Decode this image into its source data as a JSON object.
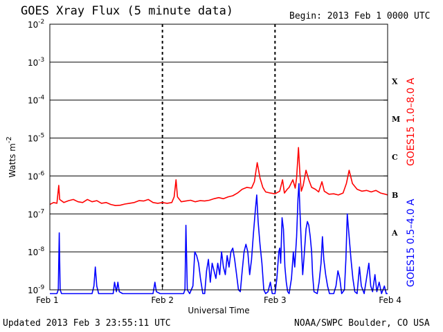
{
  "header": {
    "title": "GOES Xray Flux (5 minute data)",
    "begin": "Begin:  2013 Feb 1 0000 UTC"
  },
  "footer": {
    "updated": "Updated 2013 Feb  3 23:55:11 UTC",
    "credit": "NOAA/SWPC Boulder, CO USA"
  },
  "chart_data": {
    "type": "line",
    "title": "GOES Xray Flux (5 minute data)",
    "xlabel": "Universal Time",
    "ylabel": "Watts m",
    "ylabel_sup": "-2",
    "yscale": "log",
    "ylim": [
      1e-09,
      0.01
    ],
    "xlim": [
      0,
      72
    ],
    "x_unit": "hours since 2013 Feb 1 0000 UTC",
    "x_ticks": [
      {
        "x": 0,
        "label": "Feb 1"
      },
      {
        "x": 24,
        "label": "Feb 2"
      },
      {
        "x": 48,
        "label": "Feb 3"
      },
      {
        "x": 72,
        "label": "Feb 4"
      }
    ],
    "y_ticks": [
      {
        "exp": -2,
        "base": "10",
        "sup": "-2"
      },
      {
        "exp": -3,
        "base": "10",
        "sup": "-3"
      },
      {
        "exp": -4,
        "base": "10",
        "sup": "-4"
      },
      {
        "exp": -5,
        "base": "10",
        "sup": "-5"
      },
      {
        "exp": -6,
        "base": "10",
        "sup": "-6"
      },
      {
        "exp": -7,
        "base": "10",
        "sup": "-7"
      },
      {
        "exp": -8,
        "base": "10",
        "sup": "-8"
      },
      {
        "exp": -9,
        "base": "10",
        "sup": "-9"
      }
    ],
    "flare_classes": [
      {
        "label": "X",
        "exp": -3.5
      },
      {
        "label": "M",
        "exp": -4.5
      },
      {
        "label": "C",
        "exp": -5.5
      },
      {
        "label": "B",
        "exp": -6.5
      },
      {
        "label": "A",
        "exp": -7.5
      }
    ],
    "grid": true,
    "series": [
      {
        "name": "GOES15 1.0–8.0 A",
        "color": "#ff0000",
        "points": [
          [
            0,
            -6.75
          ],
          [
            0.8,
            -6.7
          ],
          [
            1.5,
            -6.72
          ],
          [
            1.9,
            -6.25
          ],
          [
            2.1,
            -6.62
          ],
          [
            3,
            -6.7
          ],
          [
            4,
            -6.65
          ],
          [
            5,
            -6.62
          ],
          [
            6,
            -6.68
          ],
          [
            7,
            -6.7
          ],
          [
            8,
            -6.62
          ],
          [
            9,
            -6.68
          ],
          [
            10,
            -6.65
          ],
          [
            11,
            -6.72
          ],
          [
            12,
            -6.7
          ],
          [
            13,
            -6.75
          ],
          [
            14,
            -6.78
          ],
          [
            15,
            -6.77
          ],
          [
            16,
            -6.74
          ],
          [
            17,
            -6.72
          ],
          [
            18,
            -6.7
          ],
          [
            19,
            -6.65
          ],
          [
            20,
            -6.66
          ],
          [
            21,
            -6.62
          ],
          [
            22,
            -6.7
          ],
          [
            23,
            -6.72
          ],
          [
            24,
            -6.7
          ],
          [
            25,
            -6.72
          ],
          [
            26,
            -6.7
          ],
          [
            26.5,
            -6.55
          ],
          [
            26.9,
            -6.1
          ],
          [
            27.2,
            -6.55
          ],
          [
            28,
            -6.68
          ],
          [
            29,
            -6.66
          ],
          [
            30,
            -6.64
          ],
          [
            31,
            -6.68
          ],
          [
            32,
            -6.65
          ],
          [
            33,
            -6.66
          ],
          [
            34,
            -6.64
          ],
          [
            35,
            -6.6
          ],
          [
            36,
            -6.57
          ],
          [
            37,
            -6.6
          ],
          [
            38,
            -6.55
          ],
          [
            39,
            -6.52
          ],
          [
            40,
            -6.45
          ],
          [
            41,
            -6.35
          ],
          [
            42,
            -6.3
          ],
          [
            43,
            -6.32
          ],
          [
            43.6,
            -6.15
          ],
          [
            44.2,
            -5.65
          ],
          [
            44.8,
            -6.05
          ],
          [
            45.4,
            -6.3
          ],
          [
            46,
            -6.42
          ],
          [
            47,
            -6.45
          ],
          [
            48,
            -6.47
          ],
          [
            49,
            -6.4
          ],
          [
            49.6,
            -6.1
          ],
          [
            50,
            -6.45
          ],
          [
            50.6,
            -6.35
          ],
          [
            51,
            -6.3
          ],
          [
            51.8,
            -6.1
          ],
          [
            52.3,
            -6.32
          ],
          [
            52.6,
            -6.05
          ],
          [
            53,
            -5.25
          ],
          [
            53.3,
            -5.95
          ],
          [
            53.6,
            -6.4
          ],
          [
            54,
            -6.25
          ],
          [
            54.6,
            -5.85
          ],
          [
            55.2,
            -6.1
          ],
          [
            55.8,
            -6.3
          ],
          [
            56.6,
            -6.35
          ],
          [
            57.3,
            -6.42
          ],
          [
            58,
            -6.15
          ],
          [
            58.5,
            -6.4
          ],
          [
            59.5,
            -6.48
          ],
          [
            60.5,
            -6.47
          ],
          [
            61.5,
            -6.5
          ],
          [
            62.5,
            -6.45
          ],
          [
            63.2,
            -6.2
          ],
          [
            63.8,
            -5.85
          ],
          [
            64.5,
            -6.2
          ],
          [
            65.5,
            -6.35
          ],
          [
            66.5,
            -6.4
          ],
          [
            67.5,
            -6.38
          ],
          [
            68.5,
            -6.42
          ],
          [
            69.5,
            -6.38
          ],
          [
            70.5,
            -6.45
          ],
          [
            71.5,
            -6.48
          ],
          [
            72,
            -6.5
          ]
        ]
      },
      {
        "name": "GOES15 0.5–4.0 A",
        "color": "#0000ff",
        "points": [
          [
            0,
            -9.1
          ],
          [
            1.5,
            -9.1
          ],
          [
            1.8,
            -9.0
          ],
          [
            2.0,
            -7.5
          ],
          [
            2.2,
            -9.0
          ],
          [
            2.5,
            -9.1
          ],
          [
            9.0,
            -9.1
          ],
          [
            9.4,
            -8.9
          ],
          [
            9.7,
            -8.4
          ],
          [
            10.0,
            -8.9
          ],
          [
            10.4,
            -9.1
          ],
          [
            13.5,
            -9.1
          ],
          [
            13.8,
            -8.8
          ],
          [
            14.2,
            -9.05
          ],
          [
            14.5,
            -8.8
          ],
          [
            14.8,
            -9.05
          ],
          [
            15.5,
            -9.1
          ],
          [
            22.0,
            -9.1
          ],
          [
            22.4,
            -8.8
          ],
          [
            22.7,
            -9.05
          ],
          [
            23.5,
            -9.1
          ],
          [
            28.5,
            -9.1
          ],
          [
            28.8,
            -9.0
          ],
          [
            29.0,
            -7.3
          ],
          [
            29.3,
            -9.0
          ],
          [
            29.8,
            -9.1
          ],
          [
            30.5,
            -8.9
          ],
          [
            30.9,
            -8.0
          ],
          [
            31.3,
            -8.1
          ],
          [
            31.7,
            -8.3
          ],
          [
            32.1,
            -8.7
          ],
          [
            32.6,
            -9.1
          ],
          [
            33.0,
            -9.1
          ],
          [
            33.4,
            -8.5
          ],
          [
            33.8,
            -8.2
          ],
          [
            34.2,
            -8.8
          ],
          [
            34.6,
            -8.3
          ],
          [
            35.0,
            -8.5
          ],
          [
            35.4,
            -8.7
          ],
          [
            35.8,
            -8.3
          ],
          [
            36.2,
            -8.6
          ],
          [
            36.6,
            -8.0
          ],
          [
            37.0,
            -8.4
          ],
          [
            37.4,
            -8.6
          ],
          [
            37.8,
            -8.1
          ],
          [
            38.2,
            -8.4
          ],
          [
            38.6,
            -8.0
          ],
          [
            39.0,
            -7.9
          ],
          [
            39.4,
            -8.2
          ],
          [
            39.8,
            -8.6
          ],
          [
            40.2,
            -9.0
          ],
          [
            40.6,
            -9.05
          ],
          [
            41.0,
            -8.5
          ],
          [
            41.4,
            -8.0
          ],
          [
            41.8,
            -7.8
          ],
          [
            42.2,
            -8.0
          ],
          [
            42.6,
            -8.6
          ],
          [
            43.0,
            -8.2
          ],
          [
            43.4,
            -7.5
          ],
          [
            43.8,
            -6.9
          ],
          [
            44.1,
            -6.5
          ],
          [
            44.4,
            -7.2
          ],
          [
            44.8,
            -7.8
          ],
          [
            45.2,
            -8.3
          ],
          [
            45.6,
            -9.0
          ],
          [
            46.0,
            -9.1
          ],
          [
            46.5,
            -9.05
          ],
          [
            47.0,
            -8.8
          ],
          [
            47.4,
            -9.1
          ],
          [
            48.0,
            -9.1
          ],
          [
            48.4,
            -8.7
          ],
          [
            48.8,
            -8.0
          ],
          [
            49.0,
            -7.9
          ],
          [
            49.2,
            -8.3
          ],
          [
            49.5,
            -7.1
          ],
          [
            49.8,
            -7.4
          ],
          [
            50.1,
            -8.4
          ],
          [
            50.4,
            -8.8
          ],
          [
            50.7,
            -9.05
          ],
          [
            51.0,
            -9.1
          ],
          [
            51.5,
            -8.7
          ],
          [
            51.9,
            -8.0
          ],
          [
            52.2,
            -8.4
          ],
          [
            52.6,
            -7.6
          ],
          [
            52.9,
            -6.6
          ],
          [
            53.1,
            -6.2
          ],
          [
            53.3,
            -6.9
          ],
          [
            53.6,
            -7.8
          ],
          [
            53.9,
            -8.6
          ],
          [
            54.2,
            -8.1
          ],
          [
            54.6,
            -7.4
          ],
          [
            54.9,
            -7.2
          ],
          [
            55.2,
            -7.3
          ],
          [
            55.5,
            -7.6
          ],
          [
            55.8,
            -8.0
          ],
          [
            56.0,
            -8.6
          ],
          [
            56.3,
            -9.05
          ],
          [
            57.0,
            -9.1
          ],
          [
            57.4,
            -8.8
          ],
          [
            57.8,
            -8.3
          ],
          [
            58.1,
            -7.6
          ],
          [
            58.4,
            -8.2
          ],
          [
            58.8,
            -8.6
          ],
          [
            59.2,
            -8.9
          ],
          [
            59.6,
            -9.1
          ],
          [
            60.5,
            -9.1
          ],
          [
            61.0,
            -8.9
          ],
          [
            61.4,
            -8.5
          ],
          [
            61.8,
            -8.7
          ],
          [
            62.2,
            -9.1
          ],
          [
            62.8,
            -9.0
          ],
          [
            63.1,
            -8.2
          ],
          [
            63.4,
            -7.0
          ],
          [
            63.8,
            -7.6
          ],
          [
            64.2,
            -8.2
          ],
          [
            64.6,
            -8.7
          ],
          [
            65.0,
            -9.05
          ],
          [
            65.5,
            -9.1
          ],
          [
            66.0,
            -8.4
          ],
          [
            66.4,
            -8.9
          ],
          [
            67.0,
            -9.1
          ],
          [
            67.5,
            -8.7
          ],
          [
            68.0,
            -8.3
          ],
          [
            68.4,
            -8.9
          ],
          [
            68.8,
            -9.05
          ],
          [
            69.3,
            -8.6
          ],
          [
            69.7,
            -9.05
          ],
          [
            70.2,
            -8.8
          ],
          [
            70.7,
            -9.1
          ],
          [
            71.3,
            -8.9
          ],
          [
            71.7,
            -9.1
          ],
          [
            72,
            -9.1
          ]
        ]
      }
    ]
  }
}
